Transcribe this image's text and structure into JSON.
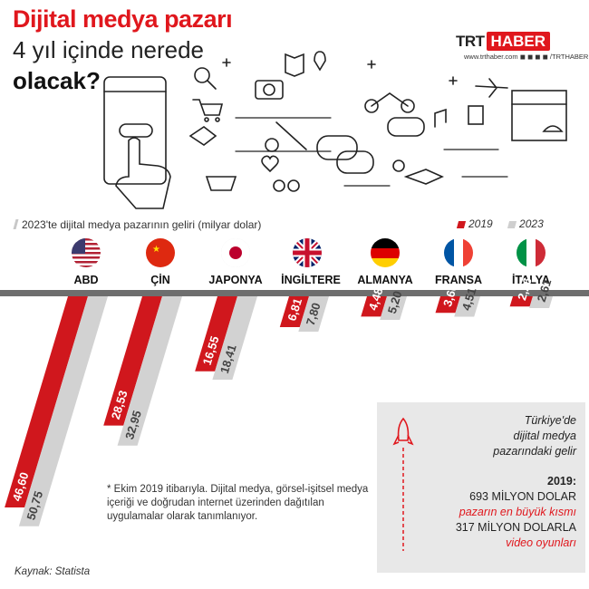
{
  "header": {
    "title_line1": "Dijital medya pazarı",
    "title_line2": "4 yıl içinde nerede",
    "title_line3": "olacak?"
  },
  "brand": {
    "logo_trt": "TRT",
    "logo_haber": "HABER",
    "sub": "www.trthaber.com  ◼ ◼ ◼ ◼ /TRTHABER"
  },
  "colors": {
    "y2019": "#d0171d",
    "y2023": "#d2d2d2",
    "accent": "#e0171d"
  },
  "chart_data": {
    "type": "bar",
    "title": "2023'te dijital medya pazarının geliri (milyar dolar)",
    "categories": [
      "ABD",
      "ÇİN",
      "JAPONYA",
      "İNGİLTERE",
      "ALMANYA",
      "FRANSA",
      "İTALYA"
    ],
    "value_labels_2019": [
      "46,60",
      "28,53",
      "16,55",
      "6,81",
      "4,48",
      "3,66",
      "2,26"
    ],
    "value_labels_2023": [
      "50,75",
      "32,95",
      "18,41",
      "7,80",
      "5,20",
      "4,51",
      "2,61"
    ],
    "series": [
      {
        "name": "2019",
        "values": [
          46.6,
          28.53,
          16.55,
          6.81,
          4.48,
          3.66,
          2.26
        ]
      },
      {
        "name": "2023",
        "values": [
          50.75,
          32.95,
          18.41,
          7.8,
          5.2,
          4.51,
          2.61
        ]
      }
    ],
    "legend_position": "top-right"
  },
  "flags": [
    "us-flag-icon",
    "china-flag-icon",
    "japan-flag-icon",
    "uk-flag-icon",
    "germany-flag-icon",
    "france-flag-icon",
    "italy-flag-icon"
  ],
  "note": "* Ekim 2019 itibarıyla. Dijital medya, görsel-işitsel medya içeriği ve doğrudan internet üzerinden dağıtılan uygulamalar olarak tanımlanıyor.",
  "source": "Kaynak: Statista",
  "info": {
    "title_l1": "Türkiye'de",
    "title_l2": "dijital medya",
    "title_l3": "pazarındaki gelir",
    "year": "2019:",
    "amount": "693 MİLYON DOLAR",
    "largest": "pazarın en büyük kısmı",
    "amount2": "317 MİLYON DOLARLA",
    "category": "video oyunları"
  }
}
